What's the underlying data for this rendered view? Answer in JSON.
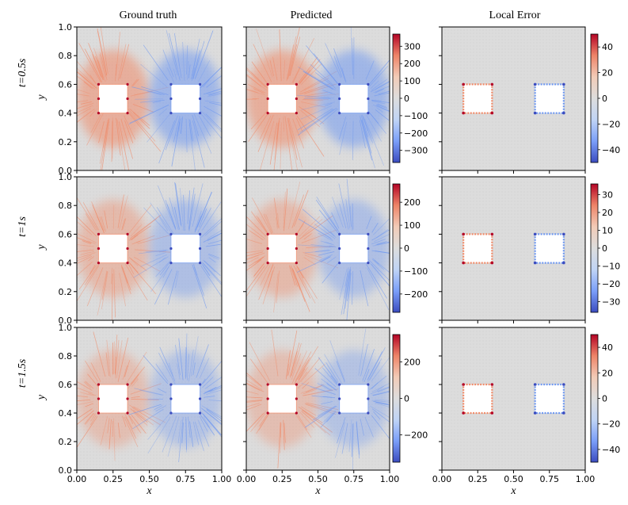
{
  "figure": {
    "column_titles": [
      "Ground truth",
      "Predicted",
      "Local Error"
    ],
    "row_labels": [
      "t=0.5s",
      "t=1s",
      "t=1.5s"
    ]
  },
  "colors": {
    "background_field": "#dcdcdc",
    "positive": "#f08a68",
    "negative": "#6f98f0",
    "colormap": [
      "#3b4cc0",
      "#7b9ff9",
      "#c0d4f5",
      "#dddddd",
      "#f2cbb7",
      "#ee8468",
      "#b40426"
    ]
  },
  "chart_data": [
    {
      "type": "heatmap",
      "row": 0,
      "col": 0,
      "xlabel": "",
      "ylabel": "y",
      "xlim": [
        0,
        1
      ],
      "ylim": [
        0,
        1
      ],
      "xticks": [],
      "yticks": [
        "0.0",
        "0.2",
        "0.4",
        "0.6",
        "0.8",
        "1.0"
      ],
      "intensity": 1.0,
      "pattern": "field",
      "colorbar": null
    },
    {
      "type": "heatmap",
      "row": 0,
      "col": 1,
      "xlabel": "",
      "ylabel": "",
      "xlim": [
        0,
        1
      ],
      "ylim": [
        0,
        1
      ],
      "xticks": [],
      "yticks": [],
      "intensity": 1.0,
      "pattern": "field",
      "colorbar": {
        "range": [
          -370,
          370
        ],
        "ticks": [
          300,
          200,
          100,
          0,
          -100,
          -200,
          -300
        ],
        "labels": [
          "300",
          "200",
          "100",
          "0",
          "−100",
          "−200",
          "−300"
        ]
      }
    },
    {
      "type": "heatmap",
      "row": 0,
      "col": 2,
      "xlabel": "",
      "ylabel": "",
      "xlim": [
        0,
        1
      ],
      "ylim": [
        0,
        1
      ],
      "xticks": [],
      "yticks": [],
      "intensity": 1.0,
      "pattern": "edge",
      "colorbar": {
        "range": [
          -50,
          50
        ],
        "ticks": [
          40,
          20,
          0,
          -20,
          -40
        ],
        "labels": [
          "40",
          "20",
          "0",
          "−20",
          "−40"
        ]
      }
    },
    {
      "type": "heatmap",
      "row": 1,
      "col": 0,
      "xlabel": "",
      "ylabel": "y",
      "xlim": [
        0,
        1
      ],
      "ylim": [
        0,
        1
      ],
      "xticks": [],
      "yticks": [
        "0.0",
        "0.2",
        "0.4",
        "0.6",
        "0.8",
        "1.0"
      ],
      "intensity": 0.75,
      "pattern": "field",
      "colorbar": null
    },
    {
      "type": "heatmap",
      "row": 1,
      "col": 1,
      "xlabel": "",
      "ylabel": "",
      "xlim": [
        0,
        1
      ],
      "ylim": [
        0,
        1
      ],
      "xticks": [],
      "yticks": [],
      "intensity": 0.75,
      "pattern": "field",
      "colorbar": {
        "range": [
          -280,
          280
        ],
        "ticks": [
          200,
          100,
          0,
          -100,
          -200
        ],
        "labels": [
          "200",
          "100",
          "0",
          "−100",
          "−200"
        ]
      }
    },
    {
      "type": "heatmap",
      "row": 1,
      "col": 2,
      "xlabel": "",
      "ylabel": "",
      "xlim": [
        0,
        1
      ],
      "ylim": [
        0,
        1
      ],
      "xticks": [],
      "yticks": [],
      "intensity": 0.75,
      "pattern": "edge",
      "colorbar": {
        "range": [
          -36,
          36
        ],
        "ticks": [
          30,
          20,
          10,
          0,
          -10,
          -20,
          -30
        ],
        "labels": [
          "30",
          "20",
          "10",
          "0",
          "−10",
          "−20",
          "−30"
        ]
      }
    },
    {
      "type": "heatmap",
      "row": 2,
      "col": 0,
      "xlabel": "x",
      "ylabel": "y",
      "xlim": [
        0,
        1
      ],
      "ylim": [
        0,
        1
      ],
      "xticks": [
        "0.00",
        "0.25",
        "0.50",
        "0.75",
        "1.00"
      ],
      "yticks": [
        "0.0",
        "0.2",
        "0.4",
        "0.6",
        "0.8",
        "1.0"
      ],
      "intensity": 0.65,
      "pattern": "field",
      "colorbar": null
    },
    {
      "type": "heatmap",
      "row": 2,
      "col": 1,
      "xlabel": "x",
      "ylabel": "",
      "xlim": [
        0,
        1
      ],
      "ylim": [
        0,
        1
      ],
      "xticks": [
        "0.00",
        "0.25",
        "0.50",
        "0.75",
        "1.00"
      ],
      "yticks": [],
      "intensity": 0.65,
      "pattern": "field",
      "colorbar": {
        "range": [
          -350,
          350
        ],
        "ticks": [
          200,
          0,
          -200
        ],
        "labels": [
          "200",
          "0",
          "−200"
        ]
      }
    },
    {
      "type": "heatmap",
      "row": 2,
      "col": 2,
      "xlabel": "x",
      "ylabel": "",
      "xlim": [
        0,
        1
      ],
      "ylim": [
        0,
        1
      ],
      "xticks": [
        "0.00",
        "0.25",
        "0.50",
        "0.75",
        "1.00"
      ],
      "yticks": [],
      "intensity": 0.65,
      "pattern": "edge",
      "colorbar": {
        "range": [
          -50,
          50
        ],
        "ticks": [
          40,
          20,
          0,
          -20,
          -40
        ],
        "labels": [
          "40",
          "20",
          "0",
          "−20",
          "−40"
        ]
      }
    }
  ]
}
